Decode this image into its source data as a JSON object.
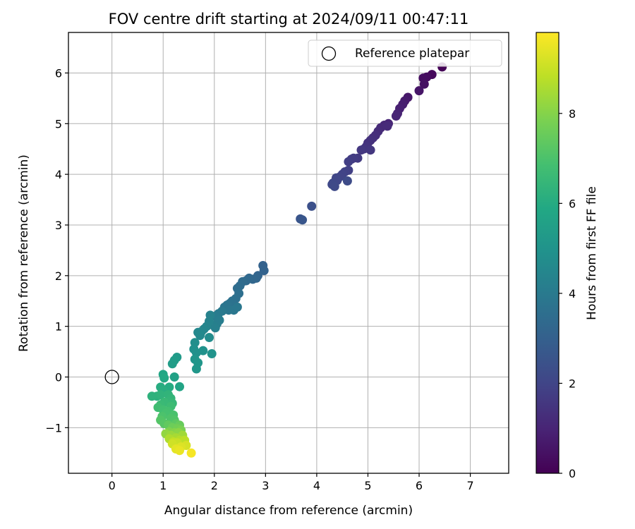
{
  "chart_data": {
    "type": "scatter",
    "title": "FOV centre drift starting at 2024/09/11 00:47:11",
    "xlabel": "Angular distance from reference (arcmin)",
    "ylabel": "Rotation from reference (arcmin)",
    "xlim": [
      -0.85,
      7.75
    ],
    "ylim": [
      -1.9,
      6.8
    ],
    "xticks": [
      0,
      1,
      2,
      3,
      4,
      5,
      6,
      7
    ],
    "yticks": [
      -1,
      0,
      1,
      2,
      3,
      4,
      5,
      6
    ],
    "xtick_labels": [
      "0",
      "1",
      "2",
      "3",
      "4",
      "5",
      "6",
      "7"
    ],
    "ytick_labels": [
      "−1",
      "0",
      "1",
      "2",
      "3",
      "4",
      "5",
      "6"
    ],
    "grid": true,
    "legend": {
      "location": "top-right",
      "entries": [
        "Reference platepar"
      ]
    },
    "reference_point": {
      "x": 0,
      "y": 0,
      "marker": "open-circle"
    },
    "colorbar": {
      "label": "Hours from first FF file",
      "range": [
        0,
        9.8
      ],
      "ticks": [
        0,
        2,
        4,
        6,
        8
      ],
      "tick_labels": [
        "0",
        "2",
        "4",
        "6",
        "8"
      ],
      "colormap": "viridis"
    },
    "series": [
      {
        "points": [
          [
            6.45,
            6.12,
            0.05
          ],
          [
            6.25,
            5.97,
            0.2
          ],
          [
            6.15,
            5.92,
            0.3
          ],
          [
            6.08,
            5.9,
            0.35
          ],
          [
            6.1,
            5.78,
            0.45
          ],
          [
            6.0,
            5.65,
            0.55
          ],
          [
            5.78,
            5.52,
            0.65
          ],
          [
            5.72,
            5.45,
            0.72
          ],
          [
            5.68,
            5.38,
            0.8
          ],
          [
            5.62,
            5.3,
            0.88
          ],
          [
            5.58,
            5.2,
            0.95
          ],
          [
            5.55,
            5.15,
            1.0
          ],
          [
            5.4,
            5.0,
            1.05
          ],
          [
            5.32,
            4.97,
            1.1
          ],
          [
            5.25,
            4.92,
            1.15
          ],
          [
            5.38,
            4.95,
            1.18
          ],
          [
            5.2,
            4.85,
            1.22
          ],
          [
            5.15,
            4.77,
            1.28
          ],
          [
            5.1,
            4.72,
            1.32
          ],
          [
            5.05,
            4.67,
            1.37
          ],
          [
            5.0,
            4.62,
            1.42
          ],
          [
            4.97,
            4.55,
            1.47
          ],
          [
            4.92,
            4.5,
            1.52
          ],
          [
            5.05,
            4.48,
            1.55
          ],
          [
            4.87,
            4.48,
            1.58
          ],
          [
            4.8,
            4.32,
            1.65
          ],
          [
            4.72,
            4.32,
            1.7
          ],
          [
            4.68,
            4.3,
            1.73
          ],
          [
            4.62,
            4.25,
            1.78
          ],
          [
            4.62,
            4.08,
            1.85
          ],
          [
            4.55,
            4.05,
            1.9
          ],
          [
            4.5,
            4.0,
            1.95
          ],
          [
            4.45,
            3.95,
            2.0
          ],
          [
            4.38,
            3.93,
            2.03
          ],
          [
            4.4,
            3.88,
            2.06
          ],
          [
            4.32,
            3.83,
            2.1
          ],
          [
            4.3,
            3.8,
            2.13
          ],
          [
            4.35,
            3.76,
            2.16
          ],
          [
            4.6,
            3.87,
            2.2
          ],
          [
            3.9,
            3.37,
            2.4
          ],
          [
            3.68,
            3.12,
            2.55
          ],
          [
            3.72,
            3.1,
            2.6
          ],
          [
            2.95,
            2.2,
            3.05
          ],
          [
            2.97,
            2.1,
            3.1
          ],
          [
            2.85,
            2.0,
            3.15
          ],
          [
            2.82,
            1.95,
            3.2
          ],
          [
            2.75,
            1.93,
            3.25
          ],
          [
            2.68,
            1.95,
            3.3
          ],
          [
            2.62,
            1.9,
            3.35
          ],
          [
            2.55,
            1.88,
            3.4
          ],
          [
            2.5,
            1.8,
            3.45
          ],
          [
            2.45,
            1.75,
            3.5
          ],
          [
            2.48,
            1.65,
            3.55
          ],
          [
            2.42,
            1.55,
            3.6
          ],
          [
            2.35,
            1.5,
            3.65
          ],
          [
            2.3,
            1.45,
            3.7
          ],
          [
            2.25,
            1.42,
            3.75
          ],
          [
            2.2,
            1.38,
            3.8
          ],
          [
            2.28,
            1.32,
            3.85
          ],
          [
            2.38,
            1.32,
            3.88
          ],
          [
            2.45,
            1.38,
            3.9
          ],
          [
            2.15,
            1.3,
            3.95
          ],
          [
            2.08,
            1.25,
            4.0
          ],
          [
            2.02,
            1.2,
            4.05
          ],
          [
            2.1,
            1.12,
            4.1
          ],
          [
            2.05,
            1.05,
            4.15
          ],
          [
            1.98,
            1.02,
            4.2
          ],
          [
            2.02,
            0.97,
            4.25
          ],
          [
            1.92,
            1.22,
            4.3
          ],
          [
            1.9,
            1.1,
            4.35
          ],
          [
            1.85,
            1.0,
            4.4
          ],
          [
            1.8,
            0.95,
            4.45
          ],
          [
            1.75,
            0.9,
            4.5
          ],
          [
            1.68,
            0.88,
            4.55
          ],
          [
            1.72,
            0.82,
            4.6
          ],
          [
            1.9,
            0.78,
            4.7
          ],
          [
            1.62,
            0.68,
            4.8
          ],
          [
            1.6,
            0.55,
            4.85
          ],
          [
            1.65,
            0.48,
            4.9
          ],
          [
            1.78,
            0.52,
            4.95
          ],
          [
            1.95,
            0.46,
            5.0
          ],
          [
            1.62,
            0.35,
            5.05
          ],
          [
            1.68,
            0.28,
            5.1
          ],
          [
            1.65,
            0.16,
            5.15
          ],
          [
            1.27,
            0.39,
            5.3
          ],
          [
            1.22,
            0.33,
            5.35
          ],
          [
            1.18,
            0.26,
            5.4
          ],
          [
            1.22,
            0.0,
            5.6
          ],
          [
            1.32,
            -0.19,
            5.7
          ],
          [
            1.0,
            0.05,
            5.8
          ],
          [
            1.02,
            -0.02,
            5.9
          ],
          [
            1.12,
            -0.2,
            6.0
          ],
          [
            0.95,
            -0.2,
            6.05
          ],
          [
            1.0,
            -0.27,
            6.1
          ],
          [
            0.88,
            -0.38,
            6.2
          ],
          [
            0.78,
            -0.38,
            6.25
          ],
          [
            0.95,
            -0.35,
            6.3
          ],
          [
            1.1,
            -0.35,
            6.35
          ],
          [
            1.15,
            -0.42,
            6.4
          ],
          [
            1.12,
            -0.48,
            6.45
          ],
          [
            1.18,
            -0.52,
            6.5
          ],
          [
            1.02,
            -0.5,
            6.55
          ],
          [
            0.95,
            -0.55,
            6.6
          ],
          [
            1.15,
            -0.58,
            6.7
          ],
          [
            0.9,
            -0.6,
            6.75
          ],
          [
            1.0,
            -0.65,
            6.8
          ],
          [
            1.1,
            -0.68,
            6.85
          ],
          [
            1.05,
            -0.72,
            6.9
          ],
          [
            1.2,
            -0.75,
            6.95
          ],
          [
            0.98,
            -0.78,
            7.0
          ],
          [
            1.15,
            -0.82,
            7.05
          ],
          [
            1.22,
            -0.85,
            7.1
          ],
          [
            0.95,
            -0.85,
            7.15
          ],
          [
            1.02,
            -0.92,
            7.2
          ],
          [
            1.25,
            -0.92,
            7.3
          ],
          [
            1.1,
            -0.95,
            7.4
          ],
          [
            1.32,
            -0.95,
            7.5
          ],
          [
            1.18,
            -1.0,
            7.6
          ],
          [
            1.28,
            -1.02,
            7.7
          ],
          [
            1.35,
            -1.05,
            7.8
          ],
          [
            1.12,
            -1.08,
            7.9
          ],
          [
            1.22,
            -1.1,
            8.0
          ],
          [
            1.3,
            -1.1,
            8.1
          ],
          [
            1.05,
            -1.12,
            8.2
          ],
          [
            1.15,
            -1.15,
            8.3
          ],
          [
            1.38,
            -1.15,
            8.4
          ],
          [
            1.25,
            -1.2,
            8.5
          ],
          [
            1.12,
            -1.22,
            8.6
          ],
          [
            1.32,
            -1.25,
            8.7
          ],
          [
            1.42,
            -1.25,
            8.8
          ],
          [
            1.2,
            -1.28,
            8.9
          ],
          [
            1.28,
            -1.3,
            9.0
          ],
          [
            1.18,
            -1.32,
            9.1
          ],
          [
            1.45,
            -1.35,
            9.2
          ],
          [
            1.35,
            -1.38,
            9.3
          ],
          [
            1.25,
            -1.42,
            9.4
          ],
          [
            1.32,
            -1.45,
            9.5
          ],
          [
            1.55,
            -1.5,
            9.7
          ]
        ]
      }
    ]
  }
}
